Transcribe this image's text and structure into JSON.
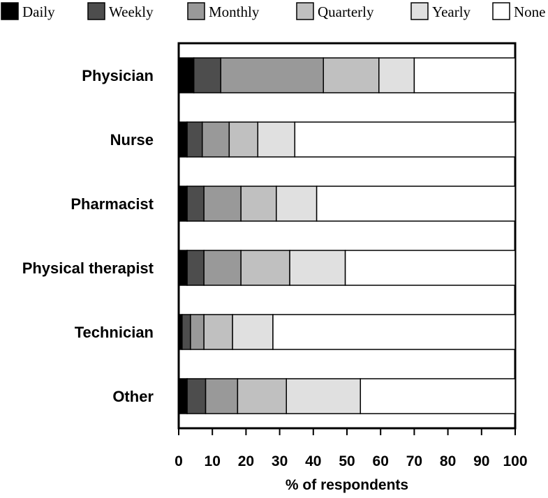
{
  "chart_data": {
    "type": "bar",
    "orientation": "horizontal",
    "stacked": true,
    "title": "",
    "xlabel": "% of respondents",
    "ylabel": "",
    "xlim": [
      0,
      100
    ],
    "xticks": [
      0,
      10,
      20,
      30,
      40,
      50,
      60,
      70,
      80,
      90,
      100
    ],
    "legend_position": "top",
    "grid": false,
    "categories": [
      "Physician",
      "Nurse",
      "Pharmacist",
      "Physical therapist",
      "Technician",
      "Other"
    ],
    "series": [
      {
        "name": "Daily",
        "color": "#000000",
        "values": [
          4.5,
          2.5,
          2.5,
          2.5,
          1.0,
          2.5
        ]
      },
      {
        "name": "Weekly",
        "color": "#4d4d4d",
        "values": [
          8.0,
          4.5,
          5.0,
          5.0,
          2.5,
          5.5
        ]
      },
      {
        "name": "Monthly",
        "color": "#999999",
        "values": [
          30.5,
          8.0,
          11.0,
          11.0,
          4.0,
          9.5
        ]
      },
      {
        "name": "Quarterly",
        "color": "#c0c0c0",
        "values": [
          16.5,
          8.5,
          10.5,
          14.5,
          8.5,
          14.5
        ]
      },
      {
        "name": "Yearly",
        "color": "#e0e0e0",
        "values": [
          10.5,
          11.0,
          12.0,
          16.5,
          12.0,
          22.0
        ]
      },
      {
        "name": "None",
        "color": "#ffffff",
        "values": [
          30.0,
          65.5,
          59.0,
          50.5,
          72.0,
          46.0
        ]
      }
    ]
  }
}
